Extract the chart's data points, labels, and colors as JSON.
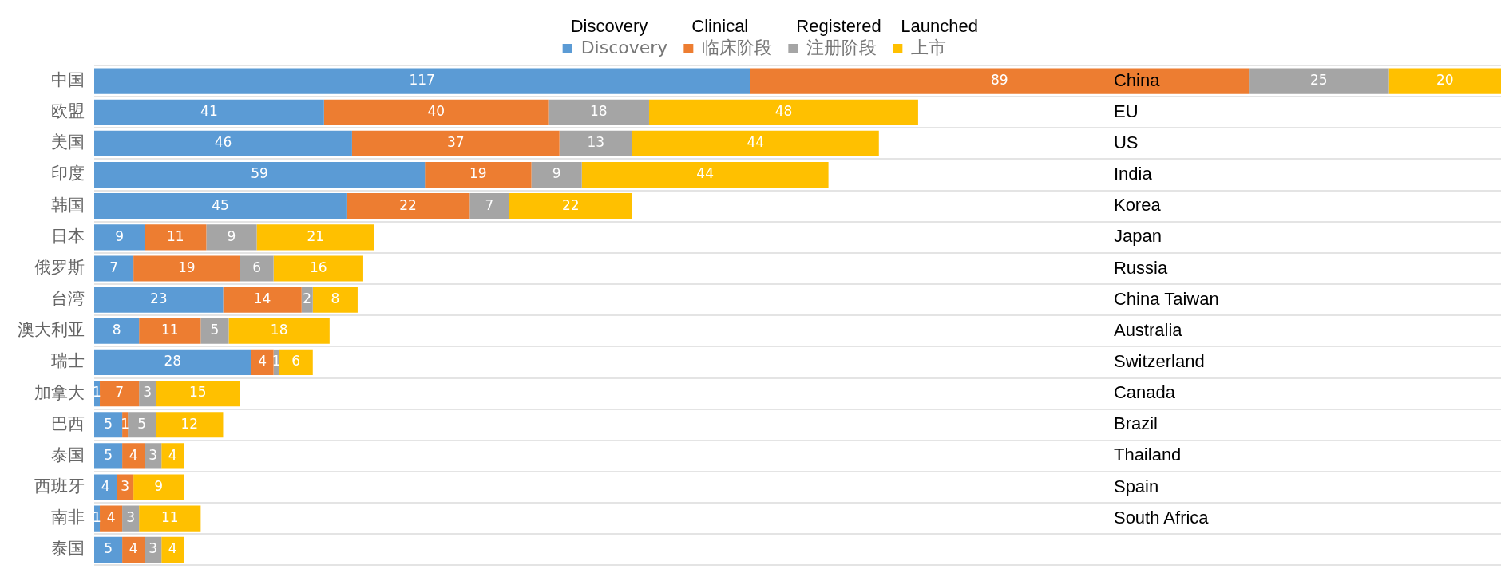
{
  "chart_data": {
    "type": "bar",
    "orientation": "horizontal",
    "stacked": true,
    "xlim": [
      0,
      251
    ],
    "data_labels": true,
    "grid": "y",
    "legend": "top",
    "tick_labels": "y",
    "categories": [
      "中国",
      "欧盟",
      "美国",
      "印度",
      "韩国",
      "日本",
      "俄罗斯",
      "台湾",
      "澳大利亚",
      "瑞士",
      "加拿大",
      "巴西",
      "泰国",
      "西班牙",
      "南非",
      "泰国"
    ],
    "series": [
      {
        "name": "Discovery",
        "color": "#5b9bd5",
        "values": [
          117,
          41,
          46,
          59,
          45,
          9,
          7,
          23,
          8,
          28,
          1,
          5,
          5,
          4,
          1,
          5
        ]
      },
      {
        "name": "临床阶段",
        "color": "#ed7d31",
        "values": [
          89,
          40,
          37,
          19,
          22,
          11,
          19,
          14,
          11,
          4,
          7,
          1,
          4,
          3,
          4,
          4
        ]
      },
      {
        "name": "注册阶段",
        "color": "#a5a5a5",
        "values": [
          25,
          18,
          13,
          9,
          7,
          9,
          6,
          2,
          5,
          1,
          3,
          5,
          3,
          null,
          3,
          3
        ]
      },
      {
        "name": "上市",
        "color": "#ffc000",
        "values": [
          20,
          48,
          44,
          44,
          22,
          21,
          16,
          8,
          18,
          6,
          15,
          12,
          4,
          9,
          11,
          4
        ]
      }
    ],
    "annotations": [
      "Discovery",
      "Clinical",
      "Registered",
      "Launched",
      "China",
      "EU",
      "US",
      "India",
      "Korea",
      "Japan",
      "Russia",
      "China Taiwan",
      "Australia",
      "Switzerland",
      "Canada",
      "Brazil",
      "Thailand",
      "Spain",
      "South Africa"
    ]
  }
}
